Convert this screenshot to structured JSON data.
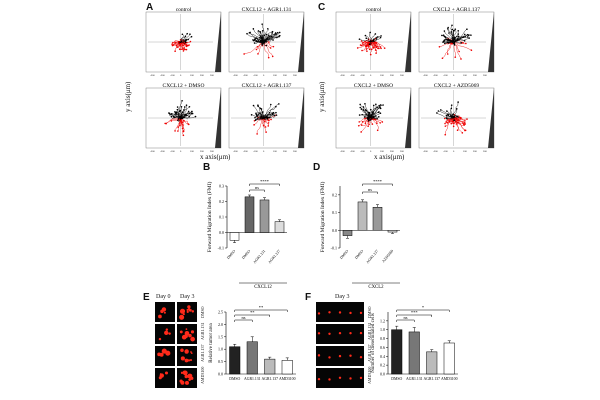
{
  "panel_A": {
    "label": "A",
    "plots": [
      {
        "title": "control",
        "dominant": "red",
        "red": 35,
        "black": 10,
        "spread": 0.25
      },
      {
        "title": "CXCL12 + AGR1.131",
        "dominant": "black",
        "red": 10,
        "black": 55,
        "spread": 0.55
      },
      {
        "title": "CXCL12 + DMSO",
        "dominant": "black",
        "red": 18,
        "black": 40,
        "spread": 0.4
      },
      {
        "title": "CXCL12 + AGR1.137",
        "dominant": "black",
        "red": 16,
        "black": 38,
        "spread": 0.45
      }
    ],
    "ylabel": "y axis(μm)",
    "xlabel": "x axis(μm)"
  },
  "panel_C": {
    "label": "C",
    "plots": [
      {
        "title": "control",
        "dominant": "red",
        "red": 45,
        "black": 12,
        "spread": 0.35
      },
      {
        "title": "CXCL2 + AGR1.137",
        "dominant": "black",
        "red": 14,
        "black": 50,
        "spread": 0.45
      },
      {
        "title": "CXCL2 + DMSO",
        "dominant": "black",
        "red": 18,
        "black": 42,
        "spread": 0.45
      },
      {
        "title": "CXCL2 + AZD5069",
        "dominant": "red",
        "red": 40,
        "black": 20,
        "spread": 0.45
      }
    ],
    "ylabel": "y axis(μm)",
    "xlabel": "x axis(μm)"
  },
  "chart_data": [
    {
      "panel": "B",
      "type": "bar",
      "ylabel": "Forward Migration Index (FMI)",
      "xlabel": "CXCL12",
      "categories": [
        "DMSO",
        "DMSO",
        "AGR1.131",
        "AGR1.137"
      ],
      "values": [
        -0.05,
        0.23,
        0.21,
        0.07
      ],
      "errors": [
        0.015,
        0.012,
        0.015,
        0.012
      ],
      "colors": [
        "#ffffff",
        "#666666",
        "#999999",
        "#dddddd"
      ],
      "ylim": [
        -0.1,
        0.3
      ],
      "yticks": [
        "0.3",
        "0.2",
        "0.1",
        "0.0",
        "-0.1"
      ],
      "significance": [
        "ns",
        "****"
      ]
    },
    {
      "panel": "D",
      "type": "bar",
      "ylabel": "Forward Migration Index (FMI)",
      "xlabel": "CXCL2",
      "categories": [
        "DMSO",
        "DMSO",
        "AGR1.137",
        "AZD5069"
      ],
      "values": [
        -0.03,
        0.16,
        0.13,
        -0.01
      ],
      "errors": [
        0.015,
        0.012,
        0.015,
        0.008
      ],
      "colors": [
        "#888888",
        "#bbbbbb",
        "#999999",
        "#dddddd"
      ],
      "ylim": [
        -0.1,
        0.25
      ],
      "yticks": [
        "0.2",
        "0.1",
        "0.0",
        "-0.1"
      ],
      "significance": [
        "ns",
        "****"
      ]
    },
    {
      "panel": "E",
      "type": "bar",
      "ylabel": "Relative tumor area",
      "xlabel": "",
      "categories": [
        "DMSO",
        "AGR1.131",
        "AGR1.137",
        "AMD3100"
      ],
      "values": [
        1.1,
        1.3,
        0.6,
        0.55
      ],
      "errors": [
        0.1,
        0.2,
        0.08,
        0.1
      ],
      "colors": [
        "#222222",
        "#777777",
        "#bbbbbb",
        "#ffffff"
      ],
      "ylim": [
        0,
        2.5
      ],
      "yticks": [
        "2.5",
        "2.0",
        "1.5",
        "1.0",
        "0.5",
        "0.0"
      ],
      "significance": [
        "ns",
        "**",
        "**"
      ]
    },
    {
      "panel": "F",
      "type": "bar",
      "ylabel": "Number of disseminated cells",
      "xlabel": "",
      "categories": [
        "DMSO",
        "AGR1.131",
        "AGR1.137",
        "AMD3100"
      ],
      "values": [
        1.0,
        0.95,
        0.5,
        0.7
      ],
      "errors": [
        0.08,
        0.1,
        0.05,
        0.05
      ],
      "colors": [
        "#222222",
        "#777777",
        "#bbbbbb",
        "#ffffff"
      ],
      "ylim": [
        0,
        1.4
      ],
      "yticks": [
        "1.2",
        "1.0",
        "0.8",
        "0.6",
        "0.4",
        "0.2",
        "0.0"
      ],
      "significance": [
        "ns",
        "***",
        "*"
      ]
    }
  ],
  "panel_E_images": {
    "label": "E",
    "columns": [
      "Day 0",
      "Day 3"
    ],
    "rows": [
      "DMSO",
      "AGR1.131",
      "AGR1.137",
      "AMD3100"
    ]
  },
  "panel_F_images": {
    "label": "F",
    "columns": [
      "Day 3"
    ],
    "rows": [
      "DMSO",
      "AGR1.131",
      "AGR1.137",
      "AMD3100"
    ]
  },
  "panel_B_label": "B",
  "panel_D_label": "D"
}
